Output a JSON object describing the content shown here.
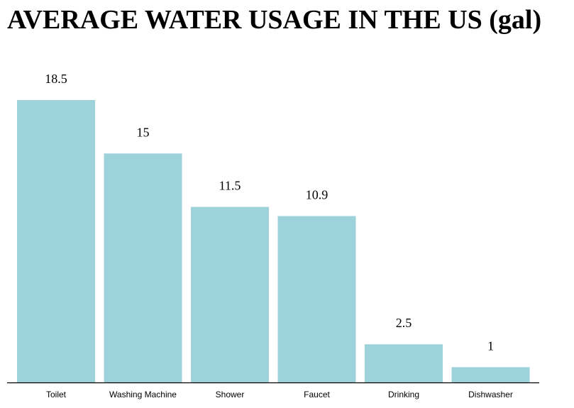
{
  "title": "AVERAGE WATER USAGE IN THE US (gal)",
  "colors": {
    "bar": "#9dd2db",
    "axis": "#000000"
  },
  "chart_data": {
    "type": "bar",
    "title": "AVERAGE WATER USAGE IN THE US (gal)",
    "categories": [
      "Toilet",
      "Washing Machine",
      "Shower",
      "Faucet",
      "Drinking",
      "Dishwasher"
    ],
    "values": [
      18.5,
      15,
      11.5,
      10.9,
      2.5,
      1
    ],
    "value_labels": [
      "18.5",
      "15",
      "11.5",
      "10.9",
      "2.5",
      "1"
    ],
    "xlabel": "",
    "ylabel": "",
    "ylim": [
      0,
      18.5
    ],
    "grid": false,
    "legend": "none"
  }
}
